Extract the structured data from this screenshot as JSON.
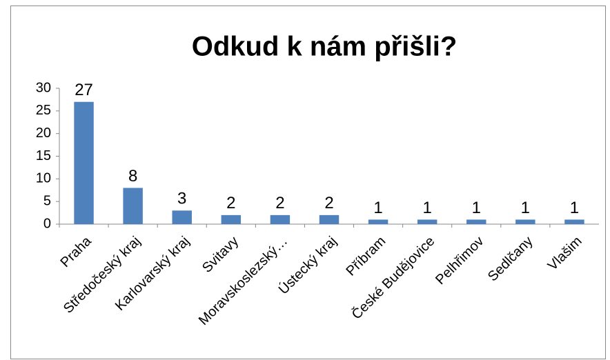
{
  "chart_data": {
    "type": "bar",
    "title": "Odkud k nám přišli?",
    "categories": [
      "Praha",
      "Středočeský kraj",
      "Karlovarský kraj",
      "Svitavy",
      "Moravskoslezský…",
      "Ústecký kraj",
      "Příbram",
      "České Budějovice",
      "Pelhřimov",
      "Sedlčany",
      "Vlašim"
    ],
    "values": [
      27,
      8,
      3,
      2,
      2,
      2,
      1,
      1,
      1,
      1,
      1
    ],
    "color": "#4f81bd",
    "ylim": [
      0,
      30
    ],
    "yticks": [
      0,
      5,
      10,
      15,
      20,
      25,
      30
    ],
    "grid": false,
    "data_labels": true
  }
}
